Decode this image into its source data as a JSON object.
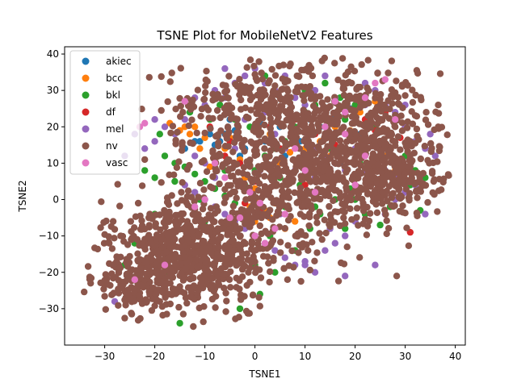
{
  "chart_data": {
    "type": "scatter",
    "title": "TSNE Plot for MobileNetV2 Features",
    "xlabel": "TSNE1",
    "ylabel": "TSNE2",
    "xlim": [
      -38,
      42
    ],
    "ylim": [
      -40,
      42
    ],
    "xticks": [
      -30,
      -20,
      -10,
      0,
      10,
      20,
      30,
      40
    ],
    "yticks": [
      -30,
      -20,
      -10,
      0,
      10,
      20,
      30,
      40
    ],
    "xtick_labels": [
      "−30",
      "−20",
      "−10",
      "0",
      "10",
      "20",
      "30",
      "40"
    ],
    "ytick_labels": [
      "−30",
      "−20",
      "−10",
      "0",
      "10",
      "20",
      "30",
      "40"
    ],
    "grid": false,
    "legend_position": "upper-left",
    "series": [
      {
        "name": "akiec",
        "color": "#1f77b4",
        "values": [
          [
            -11,
            16
          ],
          [
            -8,
            15
          ],
          [
            -6,
            18
          ],
          [
            -4,
            19
          ],
          [
            -2,
            14
          ],
          [
            2,
            16
          ],
          [
            5,
            20
          ],
          [
            8,
            18
          ],
          [
            11,
            22
          ],
          [
            13,
            20
          ],
          [
            16,
            23
          ],
          [
            -14,
            14
          ],
          [
            -9,
            18
          ],
          [
            4,
            24
          ],
          [
            17,
            10
          ],
          [
            21,
            18
          ],
          [
            -12,
            16
          ],
          [
            -5,
            22
          ],
          [
            9,
            16
          ],
          [
            14,
            9
          ],
          [
            6,
            12
          ],
          [
            -3,
            12
          ],
          [
            1,
            21
          ],
          [
            19,
            25
          ],
          [
            -7,
            16
          ]
        ]
      },
      {
        "name": "bcc",
        "color": "#ff7f0e",
        "values": [
          [
            -14,
            20
          ],
          [
            -13,
            18
          ],
          [
            -10,
            17
          ],
          [
            -8,
            12
          ],
          [
            -6,
            14
          ],
          [
            -3,
            11
          ],
          [
            0,
            3
          ],
          [
            1,
            0
          ],
          [
            2,
            -3
          ],
          [
            3,
            -5
          ],
          [
            4,
            -1
          ],
          [
            5,
            10
          ],
          [
            7,
            13
          ],
          [
            10,
            14
          ],
          [
            12,
            8
          ],
          [
            15,
            12
          ],
          [
            18,
            14
          ],
          [
            22,
            16
          ],
          [
            24,
            27
          ],
          [
            26,
            12
          ],
          [
            28,
            8
          ],
          [
            -2,
            6
          ],
          [
            -1,
            -2
          ],
          [
            0,
            -6
          ],
          [
            6,
            -8
          ],
          [
            8,
            -6
          ],
          [
            9,
            2
          ],
          [
            11,
            5
          ],
          [
            13,
            16
          ],
          [
            16,
            20
          ],
          [
            19,
            19
          ],
          [
            20,
            6
          ],
          [
            -12,
            20
          ],
          [
            -11,
            14
          ],
          [
            -5,
            17
          ],
          [
            -17,
            21
          ],
          [
            -15,
            19
          ],
          [
            -9,
            9
          ],
          [
            3,
            18
          ],
          [
            21,
            24
          ]
        ]
      },
      {
        "name": "bkl",
        "color": "#2ca02c",
        "values": [
          [
            -22,
            8
          ],
          [
            -20,
            6
          ],
          [
            -18,
            12
          ],
          [
            -16,
            10
          ],
          [
            -14,
            9
          ],
          [
            -12,
            7
          ],
          [
            -10,
            5
          ],
          [
            -8,
            3
          ],
          [
            -6,
            1
          ],
          [
            -4,
            -1
          ],
          [
            -2,
            4
          ],
          [
            0,
            8
          ],
          [
            2,
            12
          ],
          [
            4,
            14
          ],
          [
            6,
            16
          ],
          [
            8,
            20
          ],
          [
            10,
            24
          ],
          [
            12,
            26
          ],
          [
            14,
            20
          ],
          [
            16,
            18
          ],
          [
            18,
            22
          ],
          [
            20,
            26
          ],
          [
            22,
            28
          ],
          [
            24,
            20
          ],
          [
            26,
            14
          ],
          [
            28,
            10
          ],
          [
            30,
            12
          ],
          [
            32,
            8
          ],
          [
            -15,
            -34
          ],
          [
            -24,
            -12
          ],
          [
            -18,
            -20
          ],
          [
            -10,
            -6
          ],
          [
            -5,
            -12
          ],
          [
            0,
            -18
          ],
          [
            3,
            -10
          ],
          [
            6,
            -2
          ],
          [
            9,
            4
          ],
          [
            12,
            -2
          ],
          [
            15,
            6
          ],
          [
            18,
            -8
          ],
          [
            20,
            0
          ],
          [
            23,
            4
          ],
          [
            27,
            -2
          ],
          [
            31,
            4
          ],
          [
            34,
            6
          ],
          [
            -4,
            22
          ],
          [
            -7,
            26
          ],
          [
            -9,
            22
          ],
          [
            -2,
            30
          ],
          [
            2,
            34
          ],
          [
            6,
            33
          ],
          [
            10,
            30
          ],
          [
            14,
            32
          ],
          [
            17,
            28
          ],
          [
            -13,
            24
          ],
          [
            -16,
            5
          ],
          [
            -20,
            -4
          ],
          [
            -26,
            -18
          ],
          [
            -8,
            -24
          ],
          [
            -3,
            -30
          ],
          [
            1,
            -26
          ],
          [
            4,
            -20
          ],
          [
            8,
            -14
          ],
          [
            11,
            -8
          ],
          [
            13,
            -4
          ],
          [
            16,
            0
          ],
          [
            19,
            3
          ],
          [
            22,
            -4
          ],
          [
            25,
            -7
          ],
          [
            29,
            1
          ],
          [
            33,
            -3
          ],
          [
            -11,
            0
          ],
          [
            -6,
            8
          ],
          [
            5,
            6
          ],
          [
            21,
            10
          ],
          [
            25,
            22
          ],
          [
            -19,
            18
          ],
          [
            -1,
            20
          ],
          [
            7,
            28
          ],
          [
            15,
            14
          ],
          [
            24,
            11
          ]
        ]
      },
      {
        "name": "df",
        "color": "#d62728",
        "values": [
          [
            -9,
            20
          ],
          [
            -5,
            16
          ],
          [
            -3,
            10
          ],
          [
            0,
            5
          ],
          [
            -2,
            -1
          ],
          [
            1,
            -3
          ],
          [
            5,
            14
          ],
          [
            8,
            22
          ],
          [
            12,
            18
          ],
          [
            16,
            15
          ],
          [
            20,
            13
          ],
          [
            24,
            19
          ],
          [
            26,
            24
          ],
          [
            29,
            17
          ],
          [
            31,
            -9
          ],
          [
            -6,
            12
          ],
          [
            10,
            4
          ],
          [
            3,
            20
          ],
          [
            22,
            22
          ],
          [
            14,
            2
          ]
        ]
      },
      {
        "name": "mel",
        "color": "#9467bd",
        "values": [
          [
            -12,
            28
          ],
          [
            -10,
            26
          ],
          [
            -8,
            30
          ],
          [
            -6,
            28
          ],
          [
            -4,
            32
          ],
          [
            -2,
            34
          ],
          [
            0,
            36
          ],
          [
            2,
            32
          ],
          [
            4,
            30
          ],
          [
            6,
            34
          ],
          [
            8,
            28
          ],
          [
            10,
            26
          ],
          [
            12,
            30
          ],
          [
            14,
            34
          ],
          [
            16,
            28
          ],
          [
            18,
            24
          ],
          [
            20,
            22
          ],
          [
            22,
            26
          ],
          [
            24,
            30
          ],
          [
            26,
            26
          ],
          [
            28,
            24
          ],
          [
            30,
            20
          ],
          [
            32,
            16
          ],
          [
            34,
            14
          ],
          [
            36,
            12
          ],
          [
            -14,
            22
          ],
          [
            -16,
            18
          ],
          [
            -18,
            20
          ],
          [
            -20,
            16
          ],
          [
            -22,
            14
          ],
          [
            -14,
            4
          ],
          [
            -12,
            2
          ],
          [
            -10,
            0
          ],
          [
            -8,
            -2
          ],
          [
            -6,
            -4
          ],
          [
            -4,
            -6
          ],
          [
            -2,
            -8
          ],
          [
            0,
            -10
          ],
          [
            2,
            -12
          ],
          [
            4,
            -14
          ],
          [
            6,
            -16
          ],
          [
            8,
            -18
          ],
          [
            10,
            -17
          ],
          [
            12,
            -20
          ],
          [
            14,
            -14
          ],
          [
            16,
            -12
          ],
          [
            18,
            -10
          ],
          [
            20,
            -6
          ],
          [
            22,
            -2
          ],
          [
            24,
            2
          ],
          [
            26,
            -4
          ],
          [
            28,
            0
          ],
          [
            30,
            2
          ],
          [
            32,
            4
          ],
          [
            34,
            -4
          ],
          [
            8,
            8
          ],
          [
            10,
            12
          ],
          [
            12,
            14
          ],
          [
            14,
            12
          ],
          [
            16,
            10
          ],
          [
            18,
            8
          ],
          [
            20,
            6
          ],
          [
            22,
            8
          ],
          [
            24,
            10
          ],
          [
            26,
            8
          ],
          [
            28,
            6
          ],
          [
            -24,
            18
          ],
          [
            -26,
            12
          ],
          [
            -2,
            22
          ],
          [
            2,
            24
          ],
          [
            4,
            18
          ],
          [
            6,
            14
          ],
          [
            -8,
            6
          ],
          [
            -10,
            10
          ],
          [
            -12,
            12
          ],
          [
            18,
            -21
          ],
          [
            10,
            -18
          ],
          [
            22,
            32
          ],
          [
            24,
            -18
          ],
          [
            -20,
            22
          ],
          [
            -28,
            -28
          ],
          [
            -6,
            36
          ],
          [
            1,
            8
          ],
          [
            5,
            -4
          ],
          [
            15,
            -8
          ],
          [
            25,
            16
          ],
          [
            35,
            18
          ],
          [
            -4,
            14
          ],
          [
            12,
            6
          ],
          [
            20,
            14
          ],
          [
            30,
            26
          ]
        ]
      },
      {
        "name": "nv",
        "color": "#8c564b",
        "values": []
      },
      {
        "name": "vasc",
        "color": "#e377c2",
        "values": [
          [
            -23,
            20
          ],
          [
            -22,
            21
          ],
          [
            -14,
            27
          ],
          [
            -18,
            -18
          ],
          [
            -24,
            -22
          ],
          [
            -10,
            0
          ],
          [
            -5,
            -5
          ],
          [
            -3,
            -5
          ],
          [
            0,
            -10
          ],
          [
            -1,
            2
          ],
          [
            1,
            -1
          ],
          [
            2,
            -12
          ],
          [
            4,
            -8
          ],
          [
            6,
            -4
          ],
          [
            10,
            8
          ],
          [
            12,
            2
          ],
          [
            16,
            27
          ],
          [
            18,
            18
          ],
          [
            20,
            4
          ],
          [
            22,
            28
          ],
          [
            24,
            32
          ],
          [
            26,
            33
          ],
          [
            28,
            22
          ],
          [
            22,
            12
          ],
          [
            -8,
            10
          ],
          [
            -6,
            6
          ],
          [
            -12,
            -2
          ],
          [
            8,
            14
          ],
          [
            14,
            20
          ],
          [
            18,
            24
          ]
        ]
      }
    ]
  }
}
